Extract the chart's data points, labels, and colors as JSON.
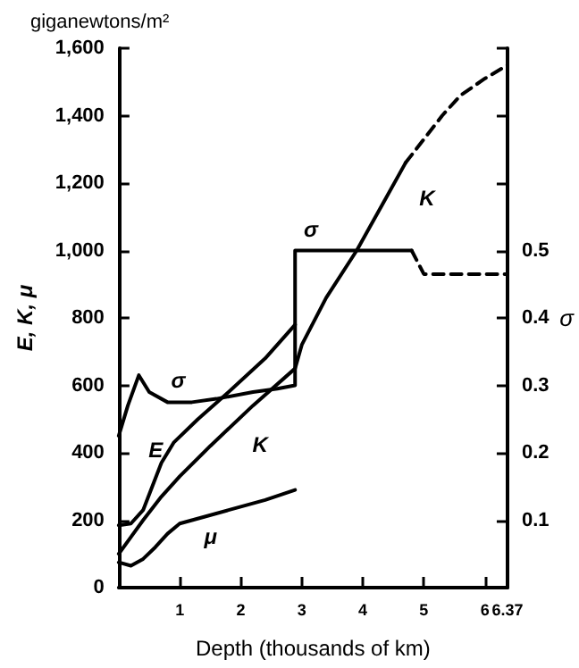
{
  "chart_data": {
    "type": "line",
    "title": "giganewtons/m²",
    "xlabel": "Depth (thousands of km)",
    "ylabel": "E, K, μ",
    "y2label": "σ",
    "xlim": [
      0,
      6.37
    ],
    "xticks": [
      1,
      2,
      3,
      4,
      5,
      6,
      6.37
    ],
    "ylim": [
      0,
      1600
    ],
    "yticks": [
      0,
      200,
      400,
      600,
      800,
      {
        "value": 1000,
        "label": "1,000"
      },
      {
        "value": 1200,
        "label": "1,200"
      },
      {
        "value": 1400,
        "label": "1,400"
      },
      {
        "value": 1600,
        "label": "1,600"
      }
    ],
    "y2lim": [
      0,
      0.8
    ],
    "y2ticks": [
      0.1,
      0.2,
      0.3,
      0.4,
      0.5,
      {
        "value": 0.6,
        "label": null
      },
      {
        "value": 0.7,
        "label": null
      },
      {
        "value": 0.8,
        "label": null
      }
    ],
    "grid": false,
    "legend": false,
    "marker": "none",
    "line_style": "solid",
    "series": [
      {
        "name": "E",
        "color": "#000000",
        "x": [
          0,
          0.2,
          0.4,
          0.55,
          0.7,
          0.9,
          1.3,
          1.8,
          2.4,
          2.89
        ],
        "values": [
          185,
          190,
          230,
          300,
          370,
          430,
          500,
          580,
          680,
          780
        ]
      },
      {
        "name": "K",
        "color": "#000000",
        "x": [
          0,
          0.2,
          0.4,
          0.7,
          1.0,
          1.5,
          2.2,
          2.89,
          3.0,
          3.4,
          3.9,
          4.3,
          4.7
        ],
        "values": [
          100,
          150,
          200,
          270,
          330,
          420,
          540,
          650,
          720,
          860,
          1000,
          1130,
          1260
        ]
      },
      {
        "color": "#000000",
        "line_style": "dashed",
        "x": [
          4.7,
          5.0,
          5.3,
          5.6,
          6.0,
          6.37
        ],
        "values": [
          1260,
          1330,
          1400,
          1460,
          1510,
          1550
        ]
      },
      {
        "name": "μ",
        "color": "#000000",
        "x": [
          0,
          0.2,
          0.4,
          0.6,
          0.8,
          1.0,
          1.4,
          1.8,
          2.4,
          2.89
        ],
        "values": [
          75,
          65,
          85,
          120,
          160,
          190,
          210,
          230,
          260,
          290
        ]
      },
      {
        "name": "σ",
        "color": "#000000",
        "axis": "y2",
        "x": [
          0,
          0.15,
          0.33,
          0.5,
          0.8,
          1.2,
          1.6,
          2.2,
          2.6,
          2.89,
          2.89,
          3.5,
          4.8
        ],
        "values": [
          0.225,
          0.27,
          0.315,
          0.29,
          0.275,
          0.275,
          0.28,
          0.29,
          0.295,
          0.3,
          0.5,
          0.5,
          0.5
        ]
      },
      {
        "color": "#000000",
        "axis": "y2",
        "line_style": "dashed",
        "x": [
          4.8,
          5.0,
          5.5,
          6.0,
          6.37
        ],
        "values": [
          0.5,
          0.465,
          0.465,
          0.465,
          0.465
        ]
      }
    ]
  }
}
